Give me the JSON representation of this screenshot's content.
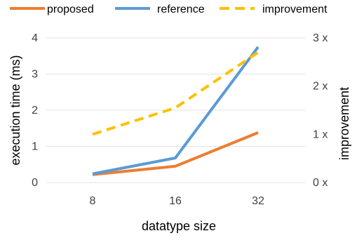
{
  "chart_data": {
    "type": "line",
    "categories": [
      "8",
      "16",
      "32"
    ],
    "xlabel": "datatype size",
    "ylabel_left": "execution time  (ms)",
    "ylabel_right": "improvement",
    "ylim_left": [
      0,
      4
    ],
    "ylim_right": [
      0,
      3
    ],
    "yticks_left": [
      "0",
      "1",
      "2",
      "3",
      "4"
    ],
    "yticks_right": [
      "0 x",
      "1 x",
      "2 x",
      "3 x"
    ],
    "grid": true,
    "legend_position": "top",
    "series": [
      {
        "name": "proposed",
        "axis": "left",
        "color": "#ED7D31",
        "dash": "solid",
        "values": [
          0.22,
          0.45,
          1.38
        ]
      },
      {
        "name": "reference",
        "axis": "left",
        "color": "#5B9BD5",
        "dash": "solid",
        "values": [
          0.24,
          0.68,
          3.75
        ]
      },
      {
        "name": "improvement",
        "axis": "right",
        "color": "#FFC000",
        "dash": "dashed",
        "values": [
          1.0,
          1.55,
          2.7
        ]
      }
    ]
  }
}
